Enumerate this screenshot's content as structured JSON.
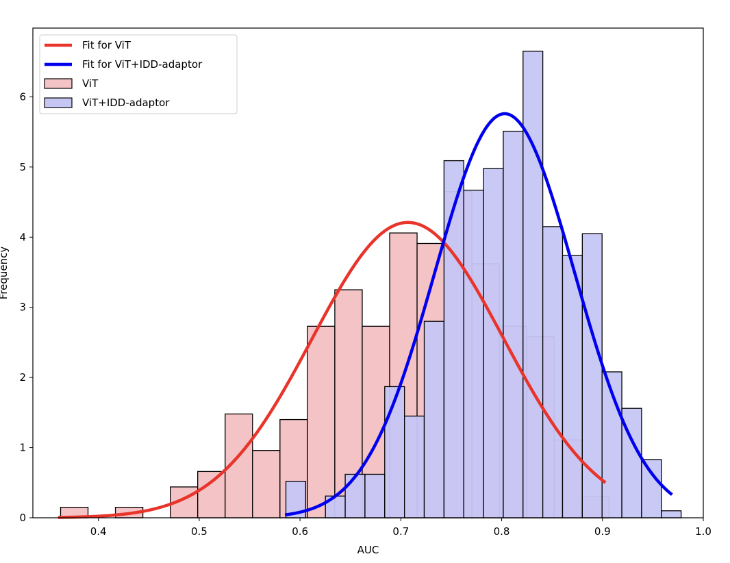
{
  "chart_data": {
    "type": "bar",
    "title": "",
    "xlabel": "AUC",
    "ylabel": "Frequency",
    "xlim": [
      0.335,
      1.0
    ],
    "ylim": [
      0,
      6.98
    ],
    "xticks": [
      0.4,
      0.5,
      0.6,
      0.7,
      0.8,
      0.9,
      1.0
    ],
    "xtick_labels": [
      "0.4",
      "0.5",
      "0.6",
      "0.7",
      "0.8",
      "0.9",
      "1.0"
    ],
    "yticks": [
      0,
      1,
      2,
      3,
      4,
      5,
      6
    ],
    "ytick_labels": [
      "0",
      "1",
      "2",
      "3",
      "4",
      "5",
      "6"
    ],
    "grid": false,
    "legend_position": "top-left",
    "legend": [
      {
        "label": "Fit for ViT",
        "kind": "line",
        "color": "#e8342a"
      },
      {
        "label": "Fit for ViT+IDD-adaptor",
        "kind": "line",
        "color": "#0000ee"
      },
      {
        "label": "ViT",
        "kind": "patch",
        "color": "#f4c3c5"
      },
      {
        "label": "ViT+IDD-adaptor",
        "kind": "patch",
        "color": "#c6c6f5"
      }
    ],
    "histograms": [
      {
        "name": "ViT",
        "color": "#f4c3c5",
        "bin_start": 0.3625,
        "bin_width": 0.0272,
        "values": [
          0.15,
          0,
          0.15,
          0,
          0.44,
          0.66,
          1.48,
          0.96,
          1.4,
          2.73,
          3.25,
          2.73,
          4.06,
          3.91,
          4.65,
          3.62,
          2.73,
          2.58,
          1.11,
          0.3,
          0,
          0,
          0
        ]
      },
      {
        "name": "ViT+IDD-adaptor",
        "color": "#c6c6f5",
        "bin_start": 0.586,
        "bin_width": 0.0196,
        "values": [
          0.52,
          0,
          0.31,
          0.62,
          0.62,
          1.87,
          1.45,
          2.8,
          5.09,
          4.67,
          4.98,
          5.51,
          6.65,
          4.15,
          3.74,
          4.05,
          2.08,
          1.56,
          0.83,
          0.1
        ]
      }
    ],
    "fit_curves": [
      {
        "name": "Fit for ViT",
        "color": "#e8342a",
        "mean": 0.707,
        "std": 0.095,
        "peak": 4.21,
        "x_range": [
          0.36,
          0.903
        ]
      },
      {
        "name": "Fit for ViT+IDD-adaptor",
        "color": "#0000ee",
        "mean": 0.803,
        "std": 0.0694,
        "peak": 5.76,
        "x_range": [
          0.585,
          0.969
        ]
      }
    ]
  }
}
